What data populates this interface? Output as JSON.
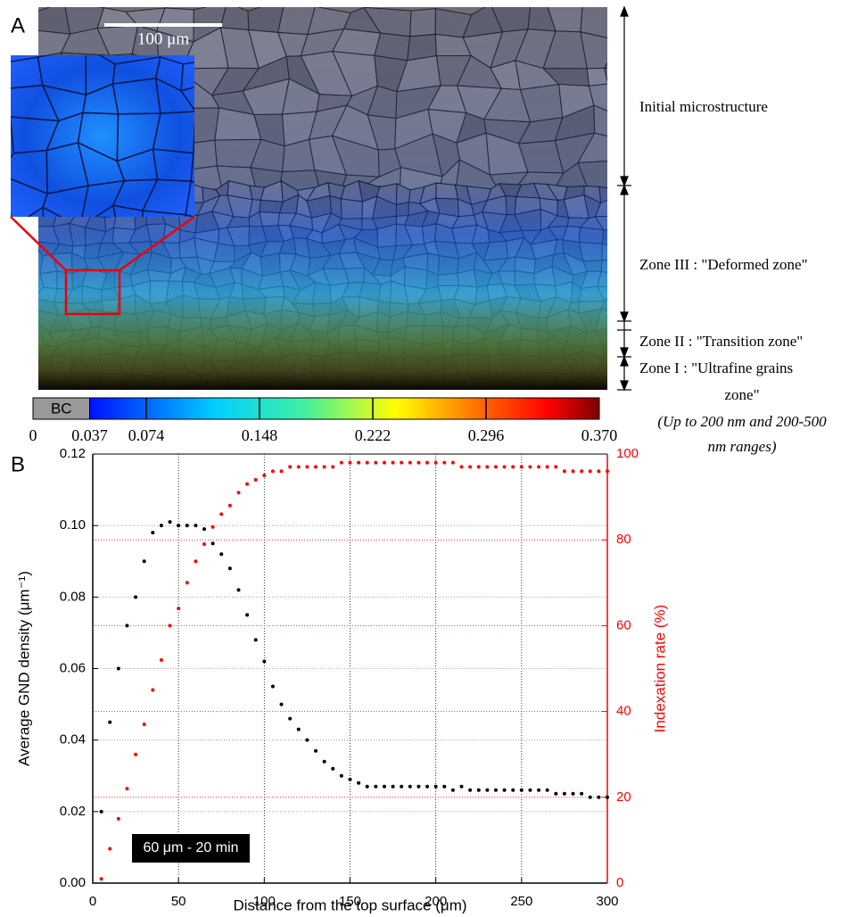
{
  "figure": {
    "panel_a_label": "A",
    "panel_b_label": "B",
    "scale_bar": "100 μm",
    "colorbar": {
      "label": "BC",
      "ticks": [
        0,
        0.037,
        0.074,
        0.148,
        0.222,
        0.296,
        {
          "value": 0.37,
          "label": "0.370"
        }
      ]
    },
    "zones": [
      "Initial microstructure",
      "Zone III : \"Deformed zone\"",
      "Zone II : \"Transition zone\"",
      "Zone I : \"Ultrafine grains",
      "zone\""
    ],
    "note": [
      "(Up to 200 nm and 200-500",
      "nm ranges)"
    ]
  },
  "chart_data": {
    "type": "scatter",
    "xlabel": "Distance from the top surface (μm)",
    "ylabel": "Average GND density (μm⁻¹)",
    "y2label": "Indexation rate (%)",
    "annotation": "60 μm - 20 min",
    "xlim": [
      0,
      300
    ],
    "xticks": [
      0,
      50,
      100,
      150,
      200,
      250,
      300
    ],
    "ylim": [
      0,
      0.12
    ],
    "yticks": [
      {
        "value": 0,
        "label": "0.00"
      },
      {
        "value": 0.02,
        "label": "0.02"
      },
      {
        "value": 0.04,
        "label": "0.04"
      },
      {
        "value": 0.06,
        "label": "0.06"
      },
      {
        "value": 0.08,
        "label": "0.08"
      },
      {
        "value": 0.1,
        "label": "0.10"
      },
      {
        "value": 0.12,
        "label": "0.12"
      }
    ],
    "y2lim": [
      0,
      100
    ],
    "y2ticks": [
      0,
      20,
      40,
      60,
      80,
      100
    ],
    "grid": true,
    "x": [
      5,
      10,
      15,
      20,
      25,
      30,
      35,
      40,
      45,
      50,
      55,
      60,
      65,
      70,
      75,
      80,
      85,
      90,
      95,
      100,
      105,
      110,
      115,
      120,
      125,
      130,
      135,
      140,
      145,
      150,
      155,
      160,
      165,
      170,
      175,
      180,
      185,
      190,
      195,
      200,
      205,
      210,
      215,
      220,
      225,
      230,
      235,
      240,
      245,
      250,
      255,
      260,
      265,
      270,
      275,
      280,
      285,
      290,
      295,
      300
    ],
    "series": [
      {
        "color": "#000000",
        "values": [
          0.02,
          0.045,
          0.06,
          0.072,
          0.08,
          0.09,
          0.098,
          0.1,
          0.101,
          0.1,
          0.1,
          0.1,
          0.099,
          0.095,
          0.092,
          0.088,
          0.082,
          0.075,
          0.068,
          0.062,
          0.055,
          0.05,
          0.046,
          0.043,
          0.04,
          0.037,
          0.034,
          0.032,
          0.03,
          0.029,
          0.028,
          0.027,
          0.027,
          0.027,
          0.027,
          0.027,
          0.027,
          0.027,
          0.027,
          0.027,
          0.027,
          0.026,
          0.027,
          0.026,
          0.026,
          0.026,
          0.026,
          0.026,
          0.026,
          0.026,
          0.026,
          0.026,
          0.026,
          0.025,
          0.025,
          0.025,
          0.025,
          0.024,
          0.024,
          0.024
        ]
      },
      {
        "color": "#ff0000",
        "axis": "y2",
        "values": [
          1,
          8,
          15,
          22,
          30,
          37,
          45,
          52,
          60,
          64,
          70,
          75,
          79,
          83,
          86,
          88,
          91,
          93,
          94,
          95,
          96,
          96,
          97,
          97,
          97,
          97,
          97,
          97,
          98,
          98,
          98,
          98,
          98,
          98,
          98,
          98,
          98,
          98,
          98,
          98,
          98,
          98,
          97,
          97,
          97,
          97,
          97,
          97,
          97,
          97,
          97,
          97,
          97,
          97,
          96,
          96,
          96,
          96,
          96,
          96
        ]
      }
    ]
  }
}
